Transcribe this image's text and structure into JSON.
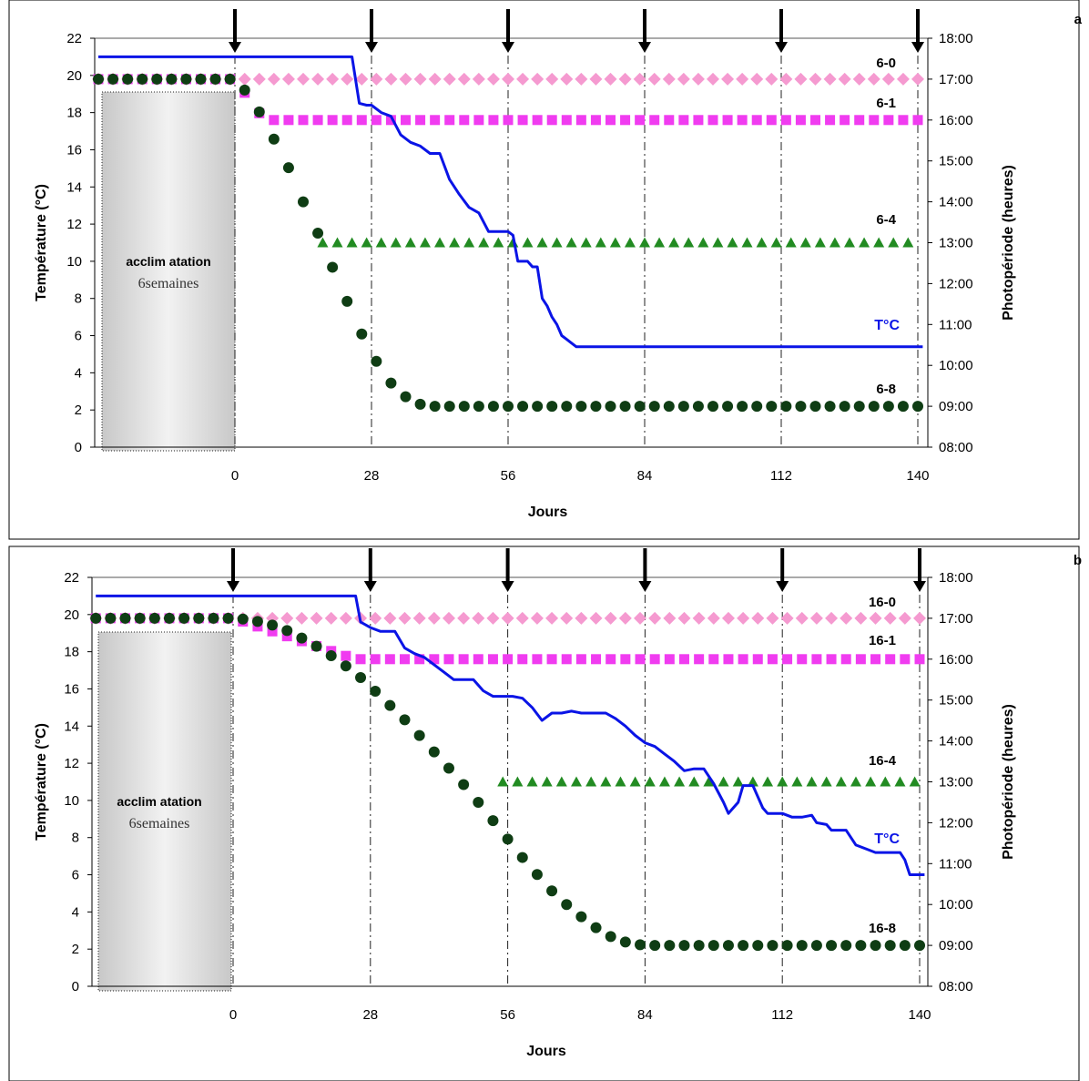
{
  "chart_data": [
    {
      "type": "line",
      "panel_label": "a",
      "xlabel": "Jours",
      "ylabel": "Température (°C)",
      "y2label": "Photopériode (heures)",
      "x_ticks": [
        0,
        28,
        56,
        84,
        112,
        140
      ],
      "xlim": [
        -28,
        142
      ],
      "ylim": [
        0,
        22
      ],
      "y_ticks": [
        0,
        2,
        4,
        6,
        8,
        10,
        12,
        14,
        16,
        18,
        20,
        22
      ],
      "y2lim": [
        8,
        18
      ],
      "y2_ticks": [
        "08:00",
        "09:00",
        "10:00",
        "11:00",
        "12:00",
        "13:00",
        "14:00",
        "15:00",
        "16:00",
        "17:00",
        "18:00"
      ],
      "sampling_arrows_days": [
        0,
        28,
        56,
        84,
        112,
        140
      ],
      "acclimation": {
        "label_bold": "acclim atation",
        "label": "6semaines",
        "x_range": [
          -28,
          0
        ]
      },
      "series": [
        {
          "name": "T°C",
          "style": "line",
          "color": "#0a14e6",
          "axis": "temperature",
          "points": [
            [
              -28,
              21
            ],
            [
              24,
              21
            ],
            [
              25.5,
              18.5
            ],
            [
              27,
              18.4
            ],
            [
              28,
              18.4
            ],
            [
              30,
              18
            ],
            [
              32,
              17.8
            ],
            [
              34,
              16.8
            ],
            [
              36,
              16.4
            ],
            [
              38,
              16.2
            ],
            [
              40,
              15.8
            ],
            [
              42,
              15.8
            ],
            [
              44,
              14.4
            ],
            [
              46,
              13.6
            ],
            [
              48,
              12.9
            ],
            [
              50,
              12.6
            ],
            [
              52,
              11.6
            ],
            [
              55,
              11.6
            ],
            [
              56,
              11.6
            ],
            [
              57,
              11.4
            ],
            [
              58,
              10
            ],
            [
              60,
              10
            ],
            [
              61,
              9.7
            ],
            [
              62,
              9.7
            ],
            [
              63,
              8
            ],
            [
              64,
              7.6
            ],
            [
              65,
              7
            ],
            [
              66,
              6.6
            ],
            [
              67,
              6
            ],
            [
              68,
              5.8
            ],
            [
              69,
              5.6
            ],
            [
              70,
              5.4
            ],
            [
              141,
              5.4
            ]
          ]
        },
        {
          "name": "6-0",
          "style": "diamond",
          "color": "#f59ad0",
          "axis": "photoperiod",
          "x_start": -28,
          "x_end": 140,
          "x_step": 3,
          "points": [
            [
              -28,
              17
            ],
            [
              140,
              17
            ]
          ]
        },
        {
          "name": "6-1",
          "style": "square",
          "color": "#f03cf0",
          "axis": "photoperiod",
          "x_start": -28,
          "x_end": 140,
          "x_step": 3,
          "points": [
            [
              -28,
              17
            ],
            [
              0,
              17
            ],
            [
              6,
              16
            ],
            [
              140,
              16
            ]
          ]
        },
        {
          "name": "6-4",
          "style": "triangle",
          "color": "#228b22",
          "axis": "photoperiod",
          "x_start": 18,
          "x_end": 140,
          "x_step": 3,
          "points": [
            [
              18,
              13
            ],
            [
              140,
              13
            ]
          ]
        },
        {
          "name": "6-8",
          "style": "circle",
          "color": "#0f3d14",
          "axis": "photoperiod",
          "x_start": -28,
          "x_end": 140,
          "x_step": 3,
          "points": [
            [
              -28,
              17
            ],
            [
              0,
              17
            ],
            [
              3,
              16.6
            ],
            [
              6,
              16
            ],
            [
              9,
              15.3
            ],
            [
              12,
              14.6
            ],
            [
              15,
              13.7
            ],
            [
              18,
              13
            ],
            [
              21,
              12.1
            ],
            [
              24,
              11.3
            ],
            [
              27,
              10.5
            ],
            [
              30,
              9.9
            ],
            [
              33,
              9.4
            ],
            [
              36,
              9.15
            ],
            [
              39,
              9
            ],
            [
              140,
              9
            ]
          ]
        }
      ],
      "series_labels": {
        "6-0": "6-0",
        "6-1": "6-1",
        "6-4": "6-4",
        "T°C": "T°C",
        "6-8": "6-8"
      }
    },
    {
      "type": "line",
      "panel_label": "b",
      "xlabel": "Jours",
      "ylabel": "Température (°C)",
      "y2label": "Photopériode (heures)",
      "x_ticks": [
        0,
        28,
        56,
        84,
        112,
        140
      ],
      "xlim": [
        -28,
        142
      ],
      "ylim": [
        0,
        22
      ],
      "y_ticks": [
        0,
        2,
        4,
        6,
        8,
        10,
        12,
        14,
        16,
        18,
        20,
        22
      ],
      "y2lim": [
        8,
        18
      ],
      "y2_ticks": [
        "08:00",
        "09:00",
        "10:00",
        "11:00",
        "12:00",
        "13:00",
        "14:00",
        "15:00",
        "16:00",
        "17:00",
        "18:00"
      ],
      "sampling_arrows_days": [
        0,
        28,
        56,
        84,
        112,
        140
      ],
      "acclimation": {
        "label_bold": "acclim atation",
        "label": "6semaines",
        "x_range": [
          -28,
          0
        ]
      },
      "series": [
        {
          "name": "T°C",
          "style": "line",
          "color": "#0a14e6",
          "axis": "temperature",
          "points": [
            [
              -28,
              21
            ],
            [
              25,
              21
            ],
            [
              26,
              19.6
            ],
            [
              28,
              19.3
            ],
            [
              30,
              19.1
            ],
            [
              33,
              19.1
            ],
            [
              35,
              18.2
            ],
            [
              37,
              17.9
            ],
            [
              39,
              17.7
            ],
            [
              41,
              17.3
            ],
            [
              43,
              16.9
            ],
            [
              45,
              16.5
            ],
            [
              49,
              16.5
            ],
            [
              51,
              15.9
            ],
            [
              53,
              15.6
            ],
            [
              57,
              15.6
            ],
            [
              59,
              15.5
            ],
            [
              61,
              15
            ],
            [
              63,
              14.3
            ],
            [
              65,
              14.7
            ],
            [
              67,
              14.7
            ],
            [
              69,
              14.8
            ],
            [
              71,
              14.7
            ],
            [
              76,
              14.7
            ],
            [
              78,
              14.4
            ],
            [
              80,
              14
            ],
            [
              82,
              13.5
            ],
            [
              84,
              13.1
            ],
            [
              86,
              12.9
            ],
            [
              88,
              12.5
            ],
            [
              90,
              12.1
            ],
            [
              92,
              11.6
            ],
            [
              94,
              11.7
            ],
            [
              96,
              11.7
            ],
            [
              98,
              10.9
            ],
            [
              100,
              9.9
            ],
            [
              101,
              9.3
            ],
            [
              102,
              9.6
            ],
            [
              103,
              9.9
            ],
            [
              104,
              10.8
            ],
            [
              106,
              10.8
            ],
            [
              108,
              9.6
            ],
            [
              109,
              9.3
            ],
            [
              112,
              9.3
            ],
            [
              114,
              9.1
            ],
            [
              116,
              9.1
            ],
            [
              118,
              9.2
            ],
            [
              119,
              8.8
            ],
            [
              121,
              8.7
            ],
            [
              122,
              8.4
            ],
            [
              125,
              8.4
            ],
            [
              127,
              7.6
            ],
            [
              129,
              7.4
            ],
            [
              131,
              7.2
            ],
            [
              136,
              7.2
            ],
            [
              137,
              6.8
            ],
            [
              138,
              6
            ],
            [
              141,
              6
            ]
          ]
        },
        {
          "name": "16-0",
          "style": "diamond",
          "color": "#f59ad0",
          "axis": "photoperiod",
          "x_start": -28,
          "x_end": 140,
          "x_step": 3,
          "points": [
            [
              -28,
              17
            ],
            [
              140,
              17
            ]
          ]
        },
        {
          "name": "16-1",
          "style": "square",
          "color": "#f03cf0",
          "axis": "photoperiod",
          "x_start": -28,
          "x_end": 140,
          "x_step": 3,
          "points": [
            [
              -28,
              17
            ],
            [
              0,
              17
            ],
            [
              25,
              16
            ],
            [
              140,
              16
            ]
          ]
        },
        {
          "name": "16-4",
          "style": "triangle",
          "color": "#228b22",
          "axis": "photoperiod",
          "x_start": 55,
          "x_end": 140,
          "x_step": 3,
          "points": [
            [
              55,
              13
            ],
            [
              140,
              13
            ]
          ]
        },
        {
          "name": "16-8",
          "style": "circle",
          "color": "#0f3d14",
          "axis": "photoperiod",
          "x_start": -28,
          "x_end": 140,
          "x_step": 3,
          "points": [
            [
              -28,
              17
            ],
            [
              0,
              17
            ],
            [
              3,
              16.97
            ],
            [
              6,
              16.9
            ],
            [
              9,
              16.8
            ],
            [
              12,
              16.65
            ],
            [
              15,
              16.45
            ],
            [
              18,
              16.25
            ],
            [
              21,
              16
            ],
            [
              24,
              15.75
            ],
            [
              27,
              15.45
            ],
            [
              30,
              15.1
            ],
            [
              33,
              14.75
            ],
            [
              36,
              14.4
            ],
            [
              39,
              14
            ],
            [
              42,
              13.6
            ],
            [
              45,
              13.2
            ],
            [
              48,
              12.8
            ],
            [
              51,
              12.35
            ],
            [
              54,
              11.9
            ],
            [
              57,
              11.45
            ],
            [
              60,
              11
            ],
            [
              63,
              10.6
            ],
            [
              66,
              10.2
            ],
            [
              69,
              9.9
            ],
            [
              72,
              9.6
            ],
            [
              75,
              9.35
            ],
            [
              78,
              9.15
            ],
            [
              81,
              9.05
            ],
            [
              84,
              9
            ],
            [
              140,
              9
            ]
          ]
        }
      ],
      "series_labels": {
        "16-0": "16-0",
        "16-1": "16-1",
        "16-4": "16-4",
        "T°C": "T°C",
        "16-8": "16-8"
      }
    }
  ]
}
